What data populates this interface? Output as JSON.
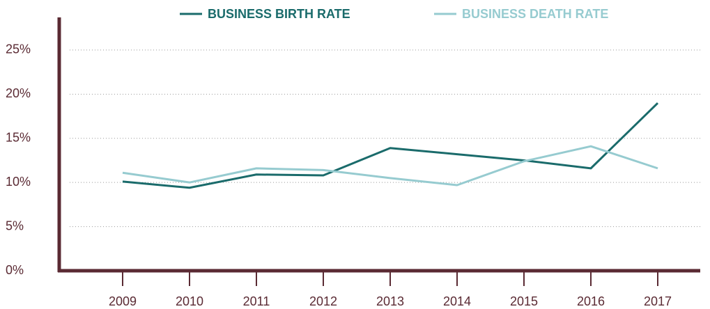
{
  "chart_data": {
    "type": "line",
    "categories": [
      "2009",
      "2010",
      "2011",
      "2012",
      "2013",
      "2014",
      "2015",
      "2016",
      "2017"
    ],
    "series": [
      {
        "name": "BUSINESS BIRTH RATE",
        "color": "#1a6b6b",
        "values": [
          10.1,
          9.4,
          10.9,
          10.8,
          13.9,
          13.2,
          12.5,
          11.6,
          19.0
        ]
      },
      {
        "name": "BUSINESS DEATH RATE",
        "color": "#96cbd0",
        "values": [
          11.1,
          10.0,
          11.6,
          11.4,
          10.5,
          9.7,
          12.4,
          14.1,
          11.6
        ]
      }
    ],
    "ylim": [
      0,
      28.7
    ],
    "yticks": [
      {
        "value": 0,
        "label": "0%"
      },
      {
        "value": 5,
        "label": "5%"
      },
      {
        "value": 10,
        "label": "10%"
      },
      {
        "value": 15,
        "label": "15%"
      },
      {
        "value": 20,
        "label": "20%"
      },
      {
        "value": 25,
        "label": "25%"
      }
    ],
    "grid": true,
    "legend": "top"
  }
}
